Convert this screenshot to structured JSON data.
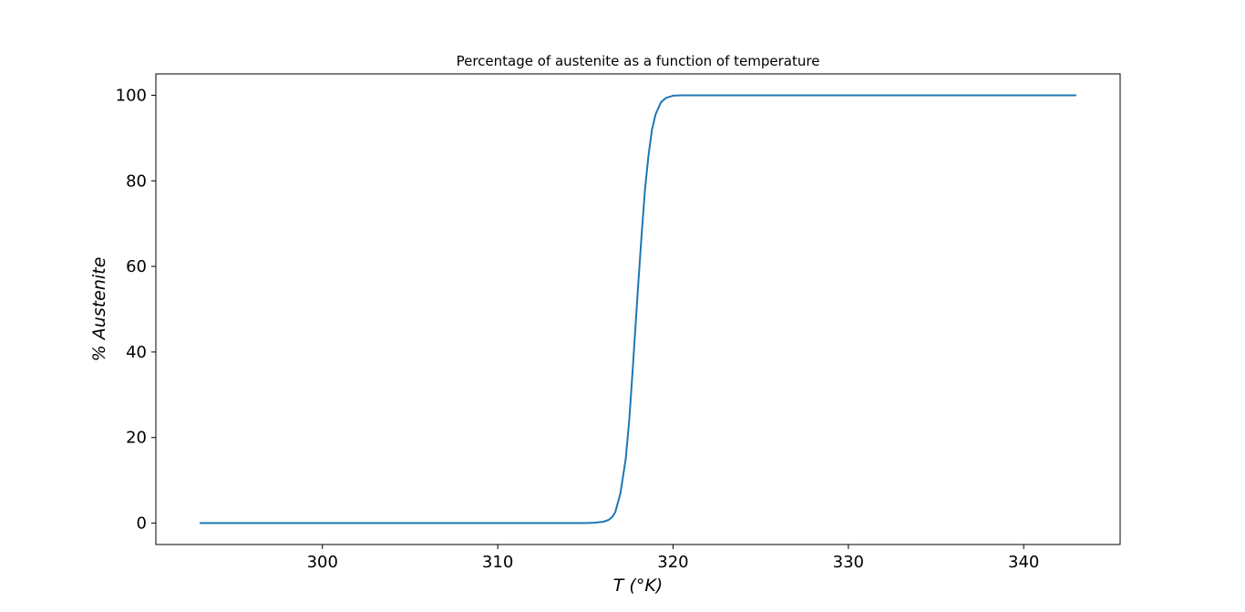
{
  "chart_data": {
    "type": "line",
    "title": "Percentage of austenite as a function of temperature",
    "xlabel": "T (°K)",
    "ylabel": "% Austenite",
    "xlim": [
      290.5,
      345.5
    ],
    "ylim": [
      -5,
      105
    ],
    "x_ticks": [
      300,
      310,
      320,
      330,
      340
    ],
    "y_ticks": [
      0,
      20,
      40,
      60,
      80,
      100
    ],
    "grid": false,
    "legend": "none",
    "series": [
      {
        "color": "#1f77b4",
        "x": [
          293,
          300,
          305,
          310,
          314,
          315,
          315.5,
          316,
          316.3,
          316.5,
          316.7,
          317,
          317.3,
          317.5,
          317.7,
          318,
          318.2,
          318.4,
          318.6,
          318.8,
          319,
          319.3,
          319.6,
          320,
          320.5,
          321,
          325,
          330,
          335,
          343
        ],
        "y": [
          0,
          0,
          0,
          0,
          0,
          0,
          0.1,
          0.3,
          0.7,
          1.3,
          2.5,
          7,
          15,
          24,
          36,
          55,
          67,
          78,
          86,
          92,
          95.5,
          98.3,
          99.4,
          99.9,
          100,
          100,
          100,
          100,
          100,
          100
        ]
      }
    ]
  }
}
